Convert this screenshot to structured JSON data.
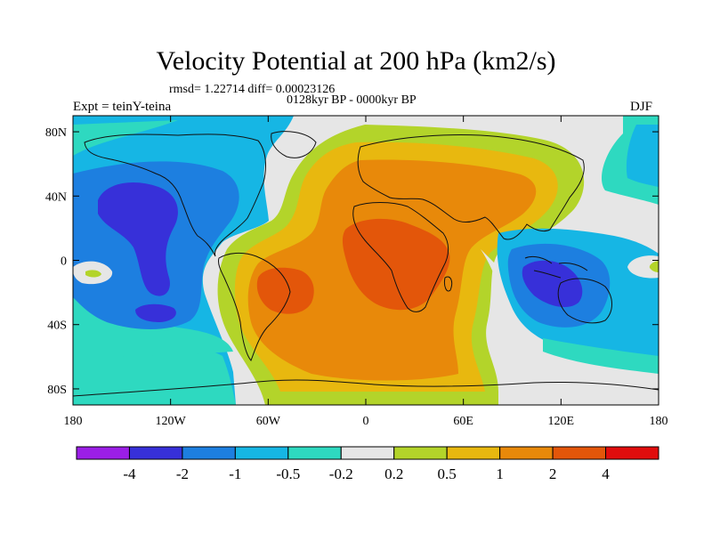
{
  "title": "Velocity Potential at 200 hPa (km2/s)",
  "stats_line": "rmsd= 1.22714 diff= 0.00023126",
  "period_line": "0128kyr BP - 0000kyr BP",
  "experiment_label": "Expt = teinY-teina",
  "season_label": "DJF",
  "chart_data": {
    "type": "filled-contour map",
    "variable": "Velocity Potential at 200 hPa",
    "units": "km2/s",
    "xlim": [
      -180,
      180
    ],
    "ylim": [
      -90,
      90
    ],
    "x_ticks": [
      {
        "value": -180,
        "label": "180"
      },
      {
        "value": -120,
        "label": "120W"
      },
      {
        "value": -60,
        "label": "60W"
      },
      {
        "value": 0,
        "label": "0"
      },
      {
        "value": 60,
        "label": "60E"
      },
      {
        "value": 120,
        "label": "120E"
      },
      {
        "value": 180,
        "label": "180"
      }
    ],
    "y_ticks": [
      {
        "value": 80,
        "label": "80N"
      },
      {
        "value": 40,
        "label": "40N"
      },
      {
        "value": 0,
        "label": "0"
      },
      {
        "value": -40,
        "label": "40S"
      },
      {
        "value": -80,
        "label": "80S"
      }
    ],
    "colorbar": {
      "labels": [
        "-4",
        "-2",
        "-1",
        "-0.5",
        "-0.2",
        "0.2",
        "0.5",
        "1",
        "2",
        "4"
      ],
      "colors": [
        "#9b1ee6",
        "#3730d9",
        "#1d7fe0",
        "#16b6e4",
        "#2ed9c0",
        "#e6e6e6",
        "#b3d42a",
        "#e8b80f",
        "#e8890a",
        "#e3560a",
        "#e00d0d"
      ]
    },
    "features": [
      {
        "name": "negative center N Pacific",
        "lon": -130,
        "lat": 35,
        "level": "-2"
      },
      {
        "name": "negative center S Pacific",
        "lon": -125,
        "lat": -32,
        "level": "-2"
      },
      {
        "name": "negative center Maritime Continent",
        "lon": 105,
        "lat": -10,
        "level": "-2"
      },
      {
        "name": "positive center Africa",
        "lon": 20,
        "lat": 5,
        "level": "2"
      },
      {
        "name": "positive center South America",
        "lon": -55,
        "lat": -15,
        "level": "2"
      }
    ]
  }
}
